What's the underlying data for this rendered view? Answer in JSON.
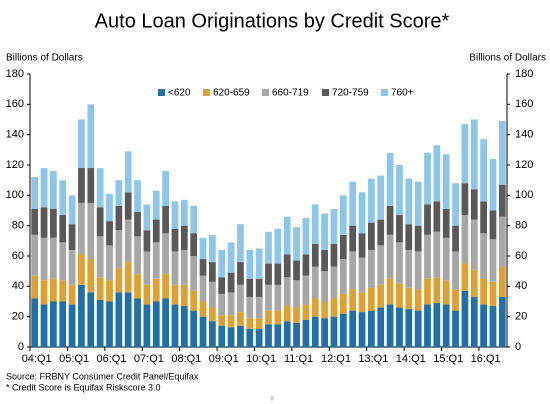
{
  "chart_data": {
    "type": "stacked_bar",
    "title": "Auto Loan Originations by Credit Score*",
    "ylabel": "Billions of Dollars",
    "y2label": "Billions of Dollars",
    "source": "Source: FRBNY Consumer Credit Panel/Equifax",
    "footnote": "* Credit Score is Equifax Riskscore 3.0",
    "page_number": "8",
    "categories": [
      "04:Q1",
      null,
      null,
      null,
      "05:Q1",
      null,
      null,
      null,
      "06:Q1",
      null,
      null,
      null,
      "07:Q1",
      null,
      null,
      null,
      "08:Q1",
      null,
      null,
      null,
      "09:Q1",
      null,
      null,
      null,
      "10:Q1",
      null,
      null,
      null,
      "11:Q1",
      null,
      null,
      null,
      "12:Q1",
      null,
      null,
      null,
      "13:Q1",
      null,
      null,
      null,
      "14:Q1",
      null,
      null,
      null,
      "15:Q1",
      null,
      null,
      null,
      "16:Q1",
      null,
      null
    ],
    "series": [
      {
        "name": "<620",
        "color": "#1f6fa8",
        "values": [
          32,
          28,
          30,
          30,
          28,
          41,
          36,
          31,
          30,
          36,
          36,
          32,
          28,
          30,
          32,
          28,
          27,
          24,
          20,
          17,
          14,
          13,
          14,
          12,
          12,
          15,
          15,
          17,
          16,
          18,
          20,
          19,
          20,
          22,
          24,
          23,
          24,
          26,
          28,
          26,
          25,
          24,
          28,
          29,
          28,
          24,
          37,
          33,
          28,
          27,
          33
        ]
      },
      {
        "name": "620-659",
        "color": "#e0a030",
        "values": [
          15,
          16,
          15,
          14,
          13,
          20,
          22,
          15,
          14,
          16,
          20,
          16,
          13,
          15,
          16,
          13,
          14,
          13,
          10,
          9,
          7,
          8,
          9,
          7,
          7,
          9,
          9,
          10,
          10,
          10,
          12,
          11,
          12,
          13,
          14,
          13,
          15,
          15,
          17,
          16,
          14,
          14,
          17,
          17,
          16,
          14,
          18,
          18,
          17,
          16,
          20
        ]
      },
      {
        "name": "660-719",
        "color": "#a6a6a6",
        "values": [
          27,
          28,
          27,
          25,
          23,
          34,
          37,
          27,
          23,
          25,
          28,
          25,
          22,
          24,
          27,
          22,
          23,
          23,
          17,
          17,
          14,
          15,
          18,
          14,
          14,
          17,
          17,
          19,
          18,
          19,
          21,
          20,
          21,
          23,
          25,
          23,
          25,
          26,
          29,
          27,
          25,
          25,
          29,
          30,
          28,
          25,
          32,
          33,
          30,
          28,
          33
        ]
      },
      {
        "name": "720-759",
        "color": "#595959",
        "values": [
          17,
          20,
          19,
          18,
          17,
          23,
          23,
          19,
          16,
          16,
          18,
          16,
          14,
          15,
          18,
          15,
          16,
          15,
          11,
          13,
          11,
          13,
          15,
          12,
          12,
          14,
          14,
          15,
          13,
          14,
          15,
          14,
          15,
          16,
          17,
          16,
          18,
          17,
          19,
          18,
          17,
          17,
          20,
          20,
          19,
          17,
          21,
          20,
          21,
          19,
          21
        ]
      },
      {
        "name": "760+",
        "color": "#8ec6ea",
        "values": [
          21,
          26,
          25,
          23,
          19,
          32,
          42,
          26,
          18,
          17,
          27,
          21,
          17,
          19,
          23,
          18,
          17,
          18,
          14,
          18,
          18,
          20,
          25,
          19,
          20,
          21,
          23,
          25,
          22,
          24,
          26,
          24,
          23,
          26,
          29,
          27,
          29,
          29,
          35,
          33,
          30,
          29,
          34,
          37,
          36,
          28,
          39,
          46,
          41,
          34,
          42
        ]
      }
    ],
    "ylim": [
      0,
      180
    ],
    "yticks": [
      0,
      20,
      40,
      60,
      80,
      100,
      120,
      140,
      160,
      180
    ],
    "y2lim": [
      0,
      180
    ],
    "y2ticks": [
      0,
      20,
      40,
      60,
      80,
      100,
      120,
      140,
      160,
      180
    ],
    "legend": "top"
  }
}
